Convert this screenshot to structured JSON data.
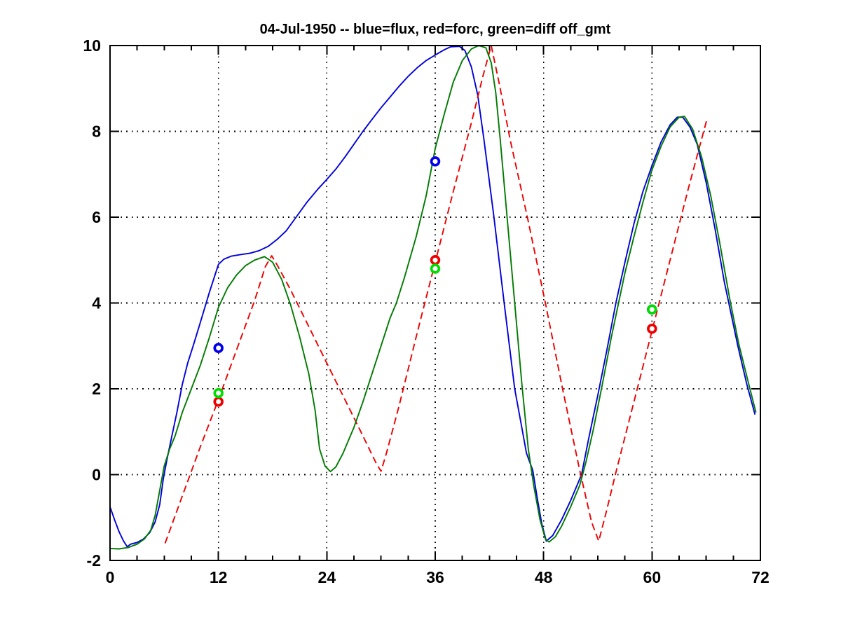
{
  "figure": {
    "background": "#ffffff"
  },
  "chart_data": {
    "type": "line",
    "title": "04-Jul-1950 -- blue=flux, red=forc, green=diff off_gmt",
    "xlabel": "",
    "ylabel": "",
    "xlim": [
      0,
      72
    ],
    "ylim": [
      -2,
      10
    ],
    "xticks": [
      0,
      12,
      24,
      36,
      48,
      60,
      72
    ],
    "xminor_step": 3,
    "yticks": [
      -2,
      0,
      2,
      4,
      6,
      8,
      10
    ],
    "grid": "dotted-major",
    "legend": "in-title",
    "axis_color": "#000000",
    "series": [
      {
        "name": "flux",
        "legend_label": "blue=flux",
        "color": "#0000DD",
        "line_style": "solid",
        "points": [
          [
            0,
            -0.75
          ],
          [
            0.5,
            -1.05
          ],
          [
            1,
            -1.33
          ],
          [
            1.5,
            -1.55
          ],
          [
            1.9,
            -1.68
          ],
          [
            2.3,
            -1.62
          ],
          [
            3,
            -1.58
          ],
          [
            3.7,
            -1.5
          ],
          [
            4.4,
            -1.35
          ],
          [
            5,
            -1.1
          ],
          [
            5.5,
            -0.7
          ],
          [
            5.9,
            -0.1
          ],
          [
            6.3,
            0.35
          ],
          [
            6.8,
            0.85
          ],
          [
            7.4,
            1.45
          ],
          [
            8,
            2.1
          ],
          [
            8.6,
            2.6
          ],
          [
            9.2,
            3.0
          ],
          [
            10,
            3.55
          ],
          [
            11,
            4.25
          ],
          [
            12,
            4.9
          ],
          [
            12.6,
            5.02
          ],
          [
            13.4,
            5.09
          ],
          [
            14.5,
            5.13
          ],
          [
            15.5,
            5.16
          ],
          [
            16.5,
            5.22
          ],
          [
            17.5,
            5.32
          ],
          [
            18.5,
            5.48
          ],
          [
            19.5,
            5.68
          ],
          [
            20.6,
            6.0
          ],
          [
            21.8,
            6.35
          ],
          [
            23,
            6.65
          ],
          [
            24,
            6.88
          ],
          [
            25,
            7.12
          ],
          [
            26,
            7.4
          ],
          [
            27,
            7.7
          ],
          [
            28,
            8.0
          ],
          [
            29,
            8.28
          ],
          [
            30,
            8.55
          ],
          [
            31,
            8.8
          ],
          [
            32,
            9.05
          ],
          [
            33,
            9.28
          ],
          [
            34,
            9.48
          ],
          [
            35,
            9.65
          ],
          [
            36,
            9.78
          ],
          [
            37,
            9.9
          ],
          [
            37.7,
            9.97
          ],
          [
            38.7,
            9.98
          ],
          [
            39.3,
            9.88
          ],
          [
            40,
            9.5
          ],
          [
            40.7,
            8.85
          ],
          [
            41.4,
            7.8
          ],
          [
            42.5,
            6.0
          ],
          [
            43.6,
            4.05
          ],
          [
            44.8,
            2.0
          ],
          [
            45.5,
            1.2
          ],
          [
            46.1,
            0.5
          ],
          [
            46.8,
            0.1
          ],
          [
            47.3,
            -0.55
          ],
          [
            47.8,
            -1.15
          ],
          [
            48.3,
            -1.55
          ],
          [
            49,
            -1.42
          ],
          [
            50,
            -1.05
          ],
          [
            51,
            -0.6
          ],
          [
            52.2,
            0
          ],
          [
            53,
            0.85
          ],
          [
            54,
            1.85
          ],
          [
            55,
            2.9
          ],
          [
            56,
            4.0
          ],
          [
            57,
            4.95
          ],
          [
            58,
            5.85
          ],
          [
            59,
            6.6
          ],
          [
            60,
            7.2
          ],
          [
            61,
            7.75
          ],
          [
            62,
            8.15
          ],
          [
            62.8,
            8.33
          ],
          [
            63.4,
            8.33
          ],
          [
            64.2,
            8.1
          ],
          [
            65,
            7.7
          ],
          [
            66,
            6.8
          ],
          [
            67,
            5.7
          ],
          [
            68,
            4.5
          ],
          [
            68.5,
            4.0
          ],
          [
            69.5,
            3.0
          ],
          [
            70.5,
            2.1
          ],
          [
            71.4,
            1.4
          ]
        ]
      },
      {
        "name": "forc",
        "legend_label": "red=forc",
        "color": "#EE0000",
        "line_style": "dashed",
        "points": [
          [
            6.1,
            -1.6
          ],
          [
            8,
            -0.5
          ],
          [
            10,
            0.65
          ],
          [
            12,
            1.75
          ],
          [
            14,
            2.9
          ],
          [
            16,
            4.05
          ],
          [
            17.2,
            4.85
          ],
          [
            17.9,
            5.1
          ],
          [
            18.6,
            4.85
          ],
          [
            20,
            4.3
          ],
          [
            22,
            3.45
          ],
          [
            24,
            2.6
          ],
          [
            26,
            1.75
          ],
          [
            28,
            0.9
          ],
          [
            29.5,
            0.25
          ],
          [
            30,
            0.08
          ],
          [
            30.6,
            0.5
          ],
          [
            32,
            1.6
          ],
          [
            34,
            3.3
          ],
          [
            36,
            4.95
          ],
          [
            38,
            6.6
          ],
          [
            40,
            8.2
          ],
          [
            41.3,
            9.3
          ],
          [
            42.2,
            10.0
          ],
          [
            43.1,
            9.1
          ],
          [
            44.3,
            7.8
          ],
          [
            46.2,
            6.0
          ],
          [
            48.2,
            4.0
          ],
          [
            50.1,
            2.0
          ],
          [
            52,
            0.1
          ],
          [
            53.3,
            -1.1
          ],
          [
            54.1,
            -1.55
          ],
          [
            54.9,
            -0.9
          ],
          [
            56,
            0.05
          ],
          [
            58,
            1.7
          ],
          [
            60,
            3.35
          ],
          [
            62,
            5.0
          ],
          [
            64,
            6.65
          ],
          [
            66.1,
            8.3
          ]
        ]
      },
      {
        "name": "diff",
        "legend_label": "green=diff",
        "color": "#007B00",
        "line_style": "solid",
        "points": [
          [
            0,
            -1.72
          ],
          [
            1,
            -1.73
          ],
          [
            2,
            -1.7
          ],
          [
            3,
            -1.62
          ],
          [
            3.8,
            -1.5
          ],
          [
            4.5,
            -1.3
          ],
          [
            5,
            -0.95
          ],
          [
            5.6,
            -0.25
          ],
          [
            6,
            0.2
          ],
          [
            6.6,
            0.6
          ],
          [
            7.2,
            0.9
          ],
          [
            8,
            1.45
          ],
          [
            9,
            2.0
          ],
          [
            10,
            2.55
          ],
          [
            11,
            3.2
          ],
          [
            12,
            3.9
          ],
          [
            13,
            4.35
          ],
          [
            14,
            4.65
          ],
          [
            15,
            4.87
          ],
          [
            16,
            5.0
          ],
          [
            17.1,
            5.08
          ],
          [
            18,
            4.95
          ],
          [
            19,
            4.55
          ],
          [
            20,
            3.95
          ],
          [
            21,
            3.2
          ],
          [
            22,
            2.35
          ],
          [
            22.7,
            1.5
          ],
          [
            23.2,
            0.6
          ],
          [
            23.8,
            0.2
          ],
          [
            24.4,
            0.07
          ],
          [
            25,
            0.18
          ],
          [
            25.8,
            0.5
          ],
          [
            27,
            1.1
          ],
          [
            28,
            1.7
          ],
          [
            29,
            2.35
          ],
          [
            30,
            3.0
          ],
          [
            31,
            3.65
          ],
          [
            31.7,
            4.0
          ],
          [
            32.6,
            4.6
          ],
          [
            33.9,
            5.55
          ],
          [
            35,
            6.5
          ],
          [
            36,
            7.6
          ],
          [
            37,
            8.4
          ],
          [
            38,
            9.15
          ],
          [
            39,
            9.65
          ],
          [
            40,
            9.92
          ],
          [
            40.8,
            10.0
          ],
          [
            41.6,
            9.95
          ],
          [
            42.2,
            9.6
          ],
          [
            42.7,
            8.9
          ],
          [
            43.2,
            7.8
          ],
          [
            44,
            5.9
          ],
          [
            44.8,
            4.0
          ],
          [
            45.6,
            2.1
          ],
          [
            46.3,
            0.6
          ],
          [
            46.9,
            -0.25
          ],
          [
            47.6,
            -1.05
          ],
          [
            48.2,
            -1.5
          ],
          [
            48.6,
            -1.57
          ],
          [
            49.3,
            -1.45
          ],
          [
            50,
            -1.2
          ],
          [
            51,
            -0.75
          ],
          [
            52,
            -0.25
          ],
          [
            52.7,
            0.3
          ],
          [
            53.5,
            1.05
          ],
          [
            54.5,
            2.1
          ],
          [
            55.5,
            3.2
          ],
          [
            56.3,
            4.0
          ],
          [
            57,
            4.7
          ],
          [
            58,
            5.55
          ],
          [
            59,
            6.35
          ],
          [
            60,
            7.1
          ],
          [
            61,
            7.65
          ],
          [
            62,
            8.1
          ],
          [
            63,
            8.33
          ],
          [
            63.6,
            8.35
          ],
          [
            64.5,
            8.05
          ],
          [
            65.5,
            7.4
          ],
          [
            66.5,
            6.5
          ],
          [
            67.5,
            5.4
          ],
          [
            68.6,
            4.1
          ],
          [
            69.6,
            3.05
          ],
          [
            70.6,
            2.2
          ],
          [
            71.5,
            1.45
          ]
        ]
      }
    ],
    "marker_series": [
      {
        "name": "flux-markers",
        "color": "#0000EE",
        "marker": "o",
        "points": [
          [
            12,
            2.95
          ],
          [
            36,
            7.3
          ],
          [
            60,
            3.85
          ]
        ]
      },
      {
        "name": "forc-markers",
        "color": "#EE0000",
        "marker": "o",
        "points": [
          [
            12,
            1.7
          ],
          [
            36,
            5.0
          ],
          [
            60,
            3.4
          ]
        ]
      },
      {
        "name": "diff-markers",
        "color": "#00DD00",
        "marker": "o",
        "points": [
          [
            12,
            1.9
          ],
          [
            36,
            4.8
          ],
          [
            60,
            3.85
          ]
        ]
      }
    ]
  }
}
